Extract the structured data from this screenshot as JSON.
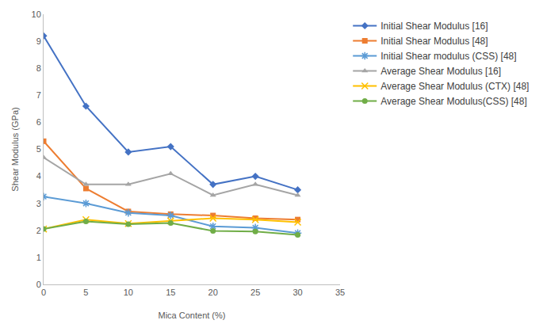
{
  "chart_data": {
    "type": "line",
    "x_label": "Mica Content (%)",
    "y_label": "Shear Modulus (GPa)",
    "x": [
      0,
      5,
      10,
      15,
      20,
      25,
      30
    ],
    "xlim": [
      0,
      35
    ],
    "xticks": [
      0,
      5,
      10,
      15,
      20,
      25,
      30,
      35
    ],
    "ylim": [
      0,
      10
    ],
    "yticks": [
      0,
      1,
      2,
      3,
      4,
      5,
      6,
      7,
      8,
      9,
      10
    ],
    "grid": false,
    "legend": "right",
    "series": [
      {
        "name": "Initial Shear Modulus [16]",
        "color": "#4472c4",
        "marker": "diamond",
        "line_style": "solid",
        "values": [
          9.2,
          6.6,
          4.9,
          5.1,
          3.7,
          4.0,
          3.5
        ]
      },
      {
        "name": "Initial Shear Modulus [48]",
        "color": "#ed7d31",
        "marker": "square",
        "line_style": "solid",
        "values": [
          5.3,
          3.55,
          2.7,
          2.6,
          2.55,
          2.45,
          2.4
        ]
      },
      {
        "name": "Initial Shear modulus (CSS) [48]",
        "color": "#5b9bd5",
        "marker": "asterisk",
        "line_style": "solid",
        "values": [
          3.25,
          3.0,
          2.65,
          2.55,
          2.15,
          2.1,
          1.9
        ]
      },
      {
        "name": "Average Shear Modulus [16]",
        "color": "#a5a5a5",
        "marker": "triangle",
        "line_style": "solid",
        "values": [
          4.7,
          3.7,
          3.7,
          4.1,
          3.3,
          3.7,
          3.3
        ]
      },
      {
        "name": "Average Shear Modulus (CTX) [48]",
        "color": "#ffc000",
        "marker": "x",
        "line_style": "solid",
        "values": [
          2.05,
          2.4,
          2.25,
          2.35,
          2.45,
          2.4,
          2.3
        ]
      },
      {
        "name": "Average Shear Modulus(CSS) [48]",
        "color": "#70ad47",
        "marker": "circle",
        "line_style": "solid",
        "values": [
          2.05,
          2.33,
          2.23,
          2.27,
          1.98,
          1.96,
          1.83
        ]
      }
    ]
  }
}
